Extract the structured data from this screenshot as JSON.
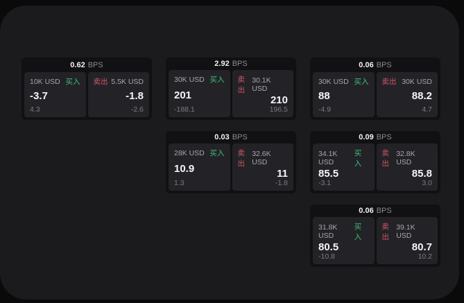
{
  "labels": {
    "bps": "BPS",
    "buy": "买入",
    "sell": "卖出"
  },
  "colors": {
    "buy": "#3fbf7a",
    "sell": "#d25465",
    "accent_bg": "#1b1b1d",
    "card_bg": "#111113",
    "panel_bg": "#232327"
  },
  "cards": [
    {
      "bps": "0.62",
      "buy": {
        "amount": "10K USD",
        "value": "-3.7",
        "delta": "4.3"
      },
      "sell": {
        "amount": "5.5K USD",
        "value": "-1.8",
        "delta": "-2.6"
      }
    },
    {
      "bps": "2.92",
      "buy": {
        "amount": "30K USD",
        "value": "201",
        "delta": "-188.1"
      },
      "sell": {
        "amount": "30.1K USD",
        "value": "210",
        "delta": "196.5"
      }
    },
    {
      "bps": "0.06",
      "buy": {
        "amount": "30K USD",
        "value": "88",
        "delta": "-4.9"
      },
      "sell": {
        "amount": "30K USD",
        "value": "88.2",
        "delta": "4.7"
      }
    },
    {
      "bps": "0.03",
      "buy": {
        "amount": "28K USD",
        "value": "10.9",
        "delta": "1.3"
      },
      "sell": {
        "amount": "32.6K USD",
        "value": "11",
        "delta": "-1.8"
      }
    },
    {
      "bps": "0.09",
      "buy": {
        "amount": "34.1K USD",
        "value": "85.5",
        "delta": "-3.1"
      },
      "sell": {
        "amount": "32.8K USD",
        "value": "85.8",
        "delta": "3.0"
      }
    },
    {
      "bps": "0.06",
      "buy": {
        "amount": "31.8K USD",
        "value": "80.5",
        "delta": "-10.8"
      },
      "sell": {
        "amount": "39.1K USD",
        "value": "80.7",
        "delta": "10.2"
      }
    }
  ]
}
